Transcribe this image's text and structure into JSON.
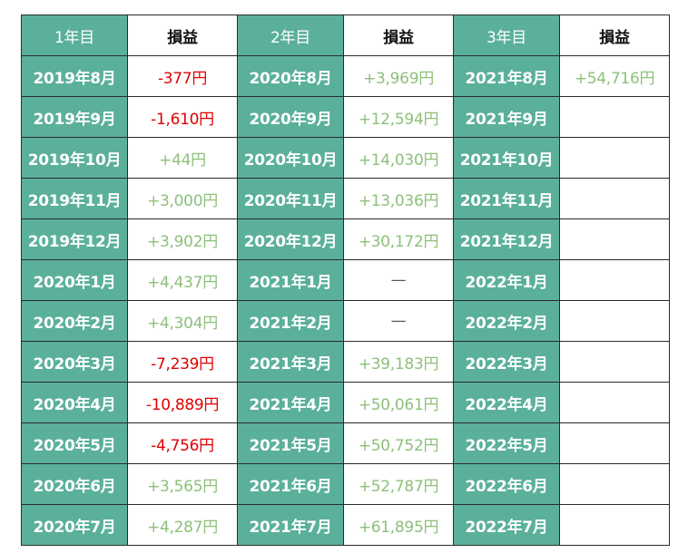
{
  "colors": {
    "header_fill": "#5bb09b",
    "positive_text": "#8dc07a",
    "negative_text": "#e00000",
    "border": "#2a2a2a"
  },
  "table": {
    "headers": [
      "1年目",
      "損益",
      "2年目",
      "損益",
      "3年目",
      "損益"
    ],
    "rows": [
      [
        "2019年8月",
        "-377円",
        "2020年8月",
        "+3,969円",
        "2021年8月",
        "+54,716円"
      ],
      [
        "2019年9月",
        "-1,610円",
        "2020年9月",
        "+12,594円",
        "2021年9月",
        ""
      ],
      [
        "2019年10月",
        "+44円",
        "2020年10月",
        "+14,030円",
        "2021年10月",
        ""
      ],
      [
        "2019年11月",
        "+3,000円",
        "2020年11月",
        "+13,036円",
        "2021年11月",
        ""
      ],
      [
        "2019年12月",
        "+3,902円",
        "2020年12月",
        "+30,172円",
        "2021年12月",
        ""
      ],
      [
        "2020年1月",
        "+4,437円",
        "2021年1月",
        "—",
        "2022年1月",
        ""
      ],
      [
        "2020年2月",
        "+4,304円",
        "2021年2月",
        "—",
        "2022年2月",
        ""
      ],
      [
        "2020年3月",
        "-7,239円",
        "2021年3月",
        "+39,183円",
        "2022年3月",
        ""
      ],
      [
        "2020年4月",
        "-10,889円",
        "2021年4月",
        "+50,061円",
        "2022年4月",
        ""
      ],
      [
        "2020年5月",
        "-4,756円",
        "2021年5月",
        "+50,752円",
        "2022年5月",
        ""
      ],
      [
        "2020年6月",
        "+3,565円",
        "2021年6月",
        "+52,787円",
        "2022年6月",
        ""
      ],
      [
        "2020年7月",
        "+4,287円",
        "2021年7月",
        "+61,895円",
        "2022年7月",
        ""
      ]
    ]
  }
}
